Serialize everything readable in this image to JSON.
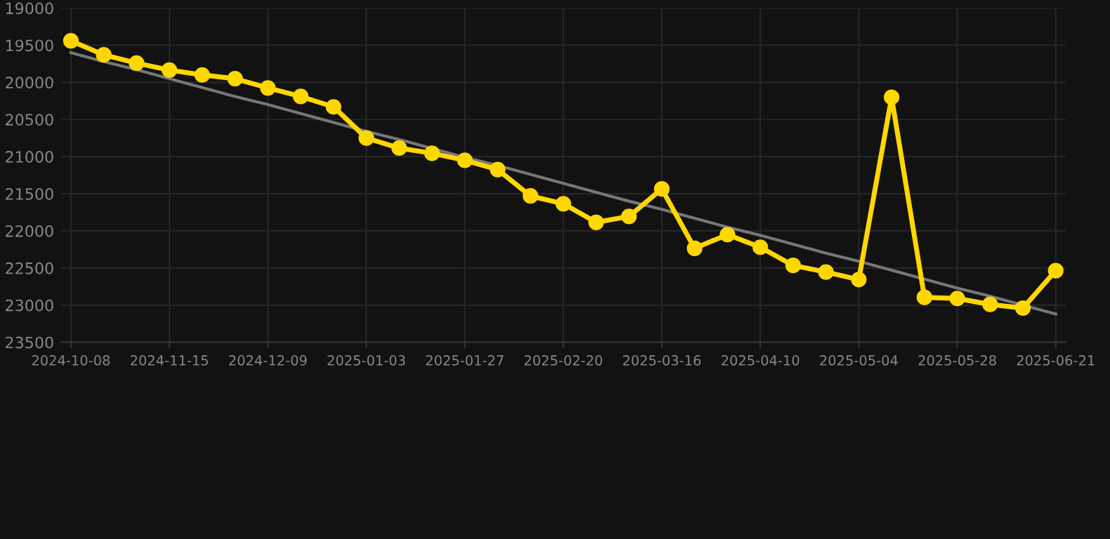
{
  "chart_data": {
    "type": "line",
    "categories": [
      "2024-10-08",
      null,
      null,
      "2024-11-15",
      null,
      null,
      "2024-12-09",
      null,
      null,
      "2025-01-03",
      null,
      null,
      "2025-01-27",
      null,
      null,
      "2025-02-20",
      null,
      null,
      "2025-03-16",
      null,
      null,
      "2025-04-10",
      null,
      null,
      "2025-05-04",
      null,
      null,
      "2025-05-28",
      null,
      null,
      "2025-06-21"
    ],
    "series": [
      {
        "color": "#ffd700",
        "marker": "circle",
        "values": [
          19440,
          19630,
          19740,
          19835,
          19900,
          19950,
          20075,
          20190,
          20330,
          20750,
          20885,
          20955,
          21050,
          21175,
          21530,
          21635,
          21885,
          21805,
          21435,
          22235,
          22050,
          22220,
          22465,
          22555,
          22655,
          20200,
          22895,
          22910,
          22990,
          23040,
          22535
        ]
      },
      {
        "color": "#777777",
        "marker": "none",
        "values": [
          19600,
          19720,
          19830,
          19950,
          20070,
          20190,
          20300,
          20420,
          20540,
          20660,
          20770,
          20890,
          21010,
          21120,
          21240,
          21360,
          21480,
          21600,
          21710,
          21830,
          21950,
          22060,
          22180,
          22300,
          22410,
          22530,
          22650,
          22770,
          22880,
          23000,
          23120
        ]
      }
    ],
    "ylim": [
      23500,
      19000
    ],
    "yticks": [
      19000,
      19500,
      20000,
      20500,
      21000,
      21500,
      22000,
      22500,
      23000,
      23500
    ],
    "grid": true
  }
}
